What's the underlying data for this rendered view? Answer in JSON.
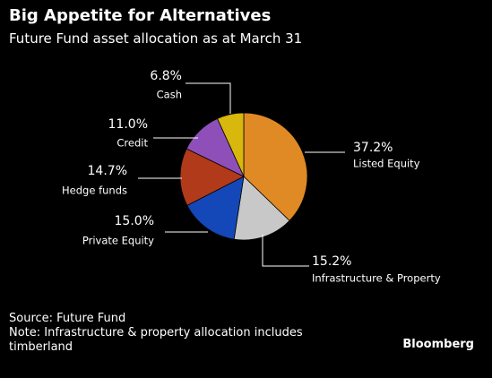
{
  "header": {
    "title": "Big Appetite for Alternatives",
    "subtitle": "Future Fund asset allocation as at March 31"
  },
  "chart_data": {
    "type": "pie",
    "title": "Big Appetite for Alternatives",
    "subtitle": "Future Fund asset allocation as at March 31",
    "unit": "%",
    "slices": [
      {
        "label": "Listed Equity",
        "value": 37.2,
        "display": "37.2%",
        "color": "#e08a26"
      },
      {
        "label": "Infrastructure & Property",
        "value": 15.2,
        "display": "15.2%",
        "color": "#c8c8c8"
      },
      {
        "label": "Private Equity",
        "value": 15.0,
        "display": "15.0%",
        "color": "#1448b8"
      },
      {
        "label": "Hedge funds",
        "value": 14.7,
        "display": "14.7%",
        "color": "#b03a1a"
      },
      {
        "label": "Credit",
        "value": 11.0,
        "display": "11.0%",
        "color": "#8e50b8"
      },
      {
        "label": "Cash",
        "value": 6.8,
        "display": "6.8%",
        "color": "#d8b80c"
      }
    ]
  },
  "footer": {
    "source": "Source: Future Fund",
    "note": "Note: Infrastructure & property allocation includes timberland",
    "brand": "Bloomberg"
  }
}
